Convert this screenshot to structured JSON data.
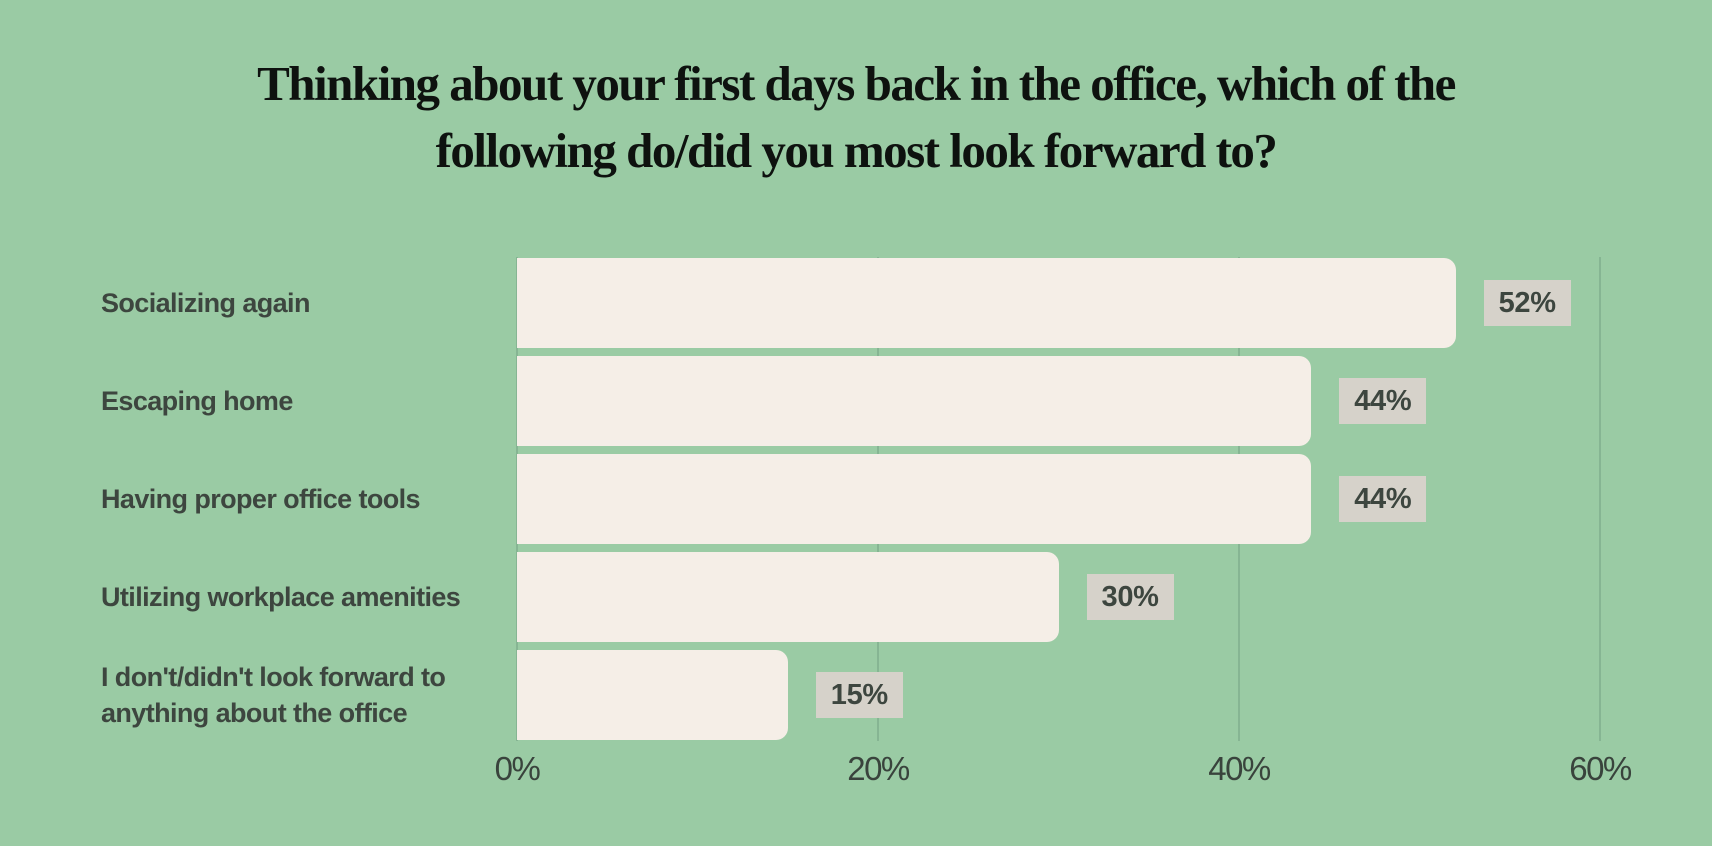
{
  "title": {
    "lines": [
      "Thinking about your first days back in the office, which of the",
      "following do/did you most look forward to?"
    ]
  },
  "chart_data": {
    "type": "bar",
    "orientation": "horizontal",
    "title": "Thinking about your first days back in the office, which of the following do/did you most look forward to?",
    "categories": [
      "Socializing again",
      "Escaping home",
      "Having proper office tools",
      "Utilizing workplace amenities",
      "I don't/didn't look forward to\nanything about the office"
    ],
    "values": [
      52,
      44,
      44,
      30,
      15
    ],
    "value_labels": [
      "52%",
      "44%",
      "44%",
      "30%",
      "15%"
    ],
    "xlabel": "",
    "ylabel": "",
    "xlim": [
      0,
      60
    ],
    "xticks": [
      0,
      20,
      40,
      60
    ],
    "xtick_labels": [
      "0%",
      "20%",
      "40%",
      "60%"
    ],
    "grid": true,
    "legend": false,
    "colors": {
      "background": "#9acba4",
      "bar": "#f5eee7",
      "value_chip_bg": "#d6d2ca",
      "label_text": "#3d463f",
      "title_text": "#0e120f",
      "tick_text": "#39433c",
      "gridline": "#86b593"
    }
  }
}
